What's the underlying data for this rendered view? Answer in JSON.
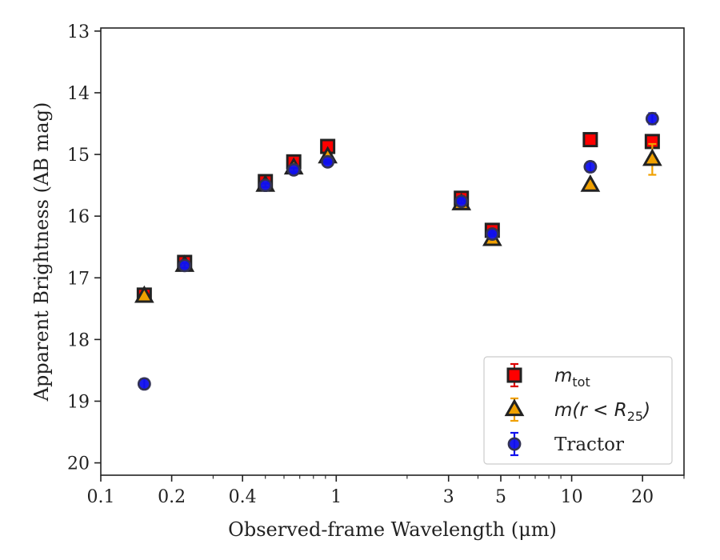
{
  "chart_data": {
    "type": "scatter",
    "xlabel": "Observed-frame Wavelength (μm)",
    "ylabel": "Apparent Brightness (AB mag)",
    "x_scale": "log",
    "y_inverted": true,
    "xlim": [
      0.1,
      30
    ],
    "ylim": [
      20.2,
      12.95
    ],
    "x_ticks": [
      0.1,
      0.2,
      0.4,
      1,
      3,
      5,
      10,
      20
    ],
    "x_tick_labels": [
      "0.1",
      "0.2",
      "0.4",
      "1",
      "3",
      "5",
      "10",
      "20"
    ],
    "y_ticks": [
      13,
      14,
      15,
      16,
      17,
      18,
      19,
      20
    ],
    "y_tick_labels": [
      "13",
      "14",
      "15",
      "16",
      "17",
      "18",
      "19",
      "20"
    ],
    "legend_position": "bottom-right",
    "series": [
      {
        "name": "m_tot",
        "label_main": "m",
        "label_sub": "tot",
        "marker": "square",
        "color": "#ff0000",
        "edge_color": "#222222",
        "errbar_color": "#dd0000",
        "points": [
          {
            "x": 0.153,
            "y": 17.28,
            "err": 0.04
          },
          {
            "x": 0.227,
            "y": 16.75,
            "err": 0.03
          },
          {
            "x": 0.5,
            "y": 15.44,
            "err": 0.03
          },
          {
            "x": 0.66,
            "y": 15.12,
            "err": 0.03
          },
          {
            "x": 0.92,
            "y": 14.87,
            "err": 0.03
          },
          {
            "x": 3.4,
            "y": 15.71,
            "err": 0.03
          },
          {
            "x": 4.6,
            "y": 16.23,
            "err": 0.03
          },
          {
            "x": 12.0,
            "y": 14.76,
            "err": 0.04
          },
          {
            "x": 22.0,
            "y": 14.79,
            "err": 0.06
          }
        ]
      },
      {
        "name": "m(r < R25)",
        "label_main": "m(r < R",
        "label_sub": "25",
        "label_end": ")",
        "marker": "triangle",
        "color": "#f0a000",
        "edge_color": "#222222",
        "errbar_color": "#f0a000",
        "points": [
          {
            "x": 0.153,
            "y": 17.3,
            "err": 0.04
          },
          {
            "x": 0.227,
            "y": 16.8,
            "err": 0.03
          },
          {
            "x": 0.5,
            "y": 15.5,
            "err": 0.03
          },
          {
            "x": 0.66,
            "y": 15.22,
            "err": 0.03
          },
          {
            "x": 0.92,
            "y": 15.04,
            "err": 0.03
          },
          {
            "x": 3.4,
            "y": 15.8,
            "err": 0.03
          },
          {
            "x": 4.6,
            "y": 16.38,
            "err": 0.03
          },
          {
            "x": 12.0,
            "y": 15.5,
            "err": 0.05
          },
          {
            "x": 22.0,
            "y": 15.08,
            "err": 0.25
          }
        ]
      },
      {
        "name": "Tractor",
        "label_main": "Tractor",
        "marker": "circle",
        "color": "#1010ee",
        "edge_color": "#333355",
        "errbar_color": "#1010ee",
        "points": [
          {
            "x": 0.153,
            "y": 18.72,
            "err": 0.08
          },
          {
            "x": 0.227,
            "y": 16.8,
            "err": 0.04
          },
          {
            "x": 0.5,
            "y": 15.5,
            "err": 0.03
          },
          {
            "x": 0.66,
            "y": 15.25,
            "err": 0.03
          },
          {
            "x": 0.92,
            "y": 15.12,
            "err": 0.03
          },
          {
            "x": 3.4,
            "y": 15.76,
            "err": 0.03
          },
          {
            "x": 4.6,
            "y": 16.29,
            "err": 0.03
          },
          {
            "x": 12.0,
            "y": 15.2,
            "err": 0.08
          },
          {
            "x": 22.0,
            "y": 14.42,
            "err": 0.09
          }
        ]
      }
    ]
  }
}
